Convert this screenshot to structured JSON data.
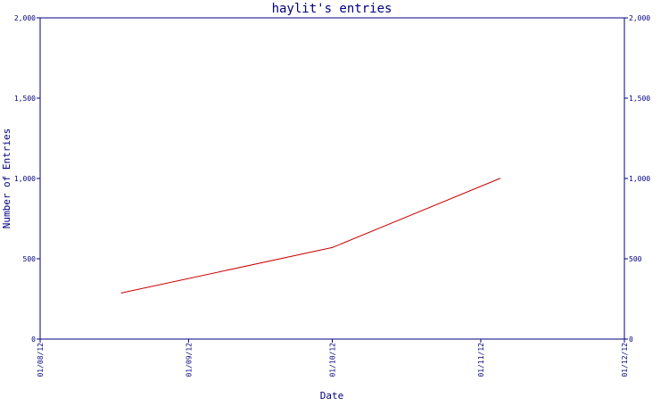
{
  "chart_data": {
    "type": "line",
    "title": "haylit's entries",
    "xlabel": "Date",
    "ylabel": "Number of Entries",
    "ylim": [
      0,
      2000
    ],
    "xlim": [
      "01/08/12",
      "01/12/12"
    ],
    "y_ticks": [
      "0",
      "500",
      "1,000",
      "1,500",
      "2,000"
    ],
    "x_ticks": [
      "01/08/12",
      "01/09/12",
      "01/10/12",
      "01/11/12",
      "01/12/12"
    ],
    "grid": false,
    "series": [
      {
        "color": "#cc0000",
        "points": [
          {
            "x": "2012-08-18",
            "y": 287
          },
          {
            "x": "2012-10-01",
            "y": 570
          },
          {
            "x": "2012-11-05",
            "y": 1000
          }
        ]
      }
    ]
  },
  "colors": {
    "axis": "#000080",
    "line": "#cc0000",
    "background": "#ffffff"
  }
}
